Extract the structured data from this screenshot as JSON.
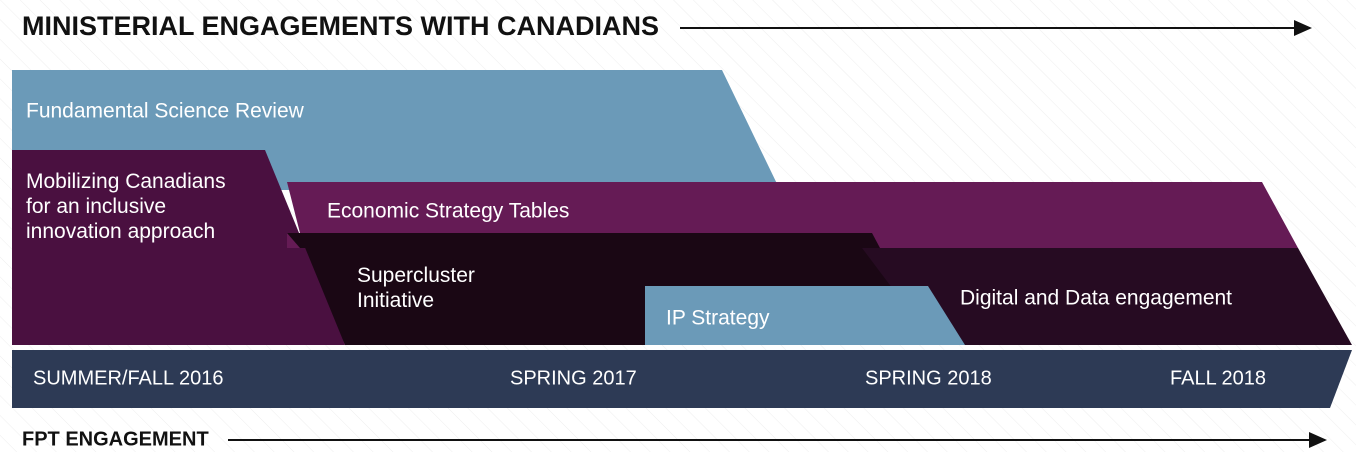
{
  "header": {
    "title": "MINISTERIAL ENGAGEMENTS WITH CANADIANS"
  },
  "nodes": [
    {
      "label": "Fundamental Science Review"
    },
    {
      "label": "Mobilizing Canadians\nfor an inclusive\ninnovation approach"
    },
    {
      "label": "Economic Strategy Tables"
    },
    {
      "label": "Supercluster\nInitiative"
    },
    {
      "label": "IP Strategy"
    },
    {
      "label": "Digital and Data engagement"
    }
  ],
  "timeline": [
    "SUMMER/FALL 2016",
    "SPRING 2017",
    "SPRING 2018",
    "FALL 2018"
  ],
  "footer": {
    "title": "FPT ENGAGEMENT"
  }
}
